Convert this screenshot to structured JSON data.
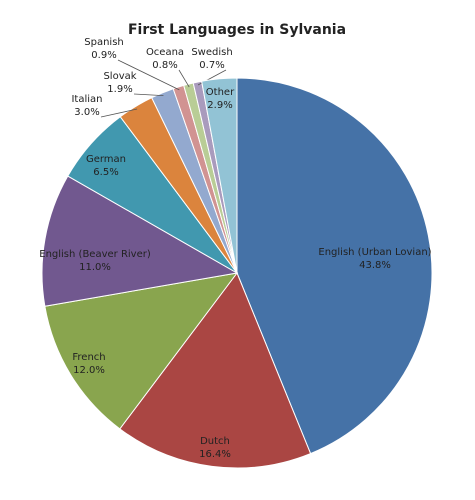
{
  "chart_data": {
    "type": "pie",
    "title": "First Languages in Sylvania",
    "categories": [
      "English (Urban Lovian)",
      "Dutch",
      "French",
      "English (Beaver River)",
      "German",
      "Italian",
      "Slovak",
      "Spanish",
      "Oceana",
      "Swedish",
      "Other"
    ],
    "values": [
      43.8,
      16.4,
      12.0,
      11.0,
      6.5,
      3.0,
      1.9,
      0.9,
      0.8,
      0.7,
      2.9
    ],
    "value_labels": [
      "43.8%",
      "16.4%",
      "12.0%",
      "11.0%",
      "6.5%",
      "3.0%",
      "1.9%",
      "0.9%",
      "0.8%",
      "0.7%",
      "2.9%"
    ],
    "colors": [
      "#4572a7",
      "#aa4643",
      "#89a54e",
      "#71588f",
      "#4198af",
      "#db843d",
      "#93a9cf",
      "#d19392",
      "#b9cd96",
      "#a99bbd",
      "#92c3d5"
    ]
  }
}
